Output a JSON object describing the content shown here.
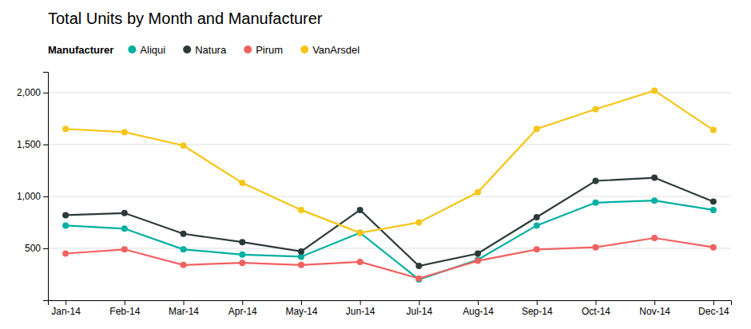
{
  "chart_data": {
    "type": "line",
    "title": "Total Units by Month and Manufacturer",
    "legend_title": "Manufacturer",
    "legend": "top",
    "categories": [
      "Jan-14",
      "Feb-14",
      "Mar-14",
      "Apr-14",
      "May-14",
      "Jun-14",
      "Jul-14",
      "Aug-14",
      "Sep-14",
      "Oct-14",
      "Nov-14",
      "Dec-14"
    ],
    "series": [
      {
        "name": "Aliqui",
        "color": "#00B0A0",
        "marker": "circle",
        "values": [
          720,
          690,
          490,
          440,
          420,
          650,
          200,
          390,
          720,
          940,
          960,
          870
        ]
      },
      {
        "name": "Natura",
        "color": "#2D3A3A",
        "marker": "circle",
        "values": [
          820,
          840,
          640,
          560,
          470,
          870,
          330,
          450,
          800,
          1150,
          1180,
          950
        ]
      },
      {
        "name": "Pirum",
        "color": "#F26060",
        "marker": "circle",
        "values": [
          450,
          490,
          340,
          360,
          340,
          370,
          210,
          380,
          490,
          510,
          600,
          510
        ]
      },
      {
        "name": "VanArsdel",
        "color": "#F5C518",
        "marker": "circle",
        "values": [
          1650,
          1620,
          1490,
          1130,
          870,
          650,
          750,
          1040,
          1650,
          1840,
          2020,
          1640
        ]
      }
    ],
    "ylim": [
      0,
      2200
    ],
    "yticks": [
      500,
      {
        "value": 1000,
        "label": "1,000"
      },
      {
        "value": 1500,
        "label": "1,500"
      },
      {
        "value": 2000,
        "label": "2,000"
      }
    ],
    "grid": true
  }
}
